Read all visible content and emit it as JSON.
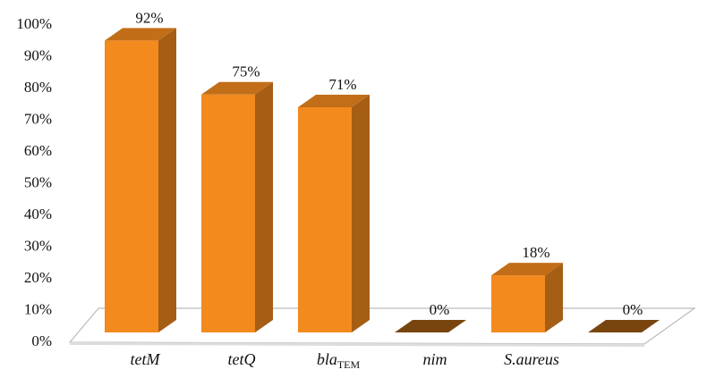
{
  "chart_data": {
    "type": "bar3d",
    "categories": [
      "tetM",
      "tetQ",
      "bla",
      "nim",
      "S.aureus",
      null
    ],
    "category_subscripts": [
      null,
      null,
      "TEM",
      null,
      null,
      null
    ],
    "values": [
      92,
      75,
      71,
      0,
      18,
      0
    ],
    "value_labels": [
      "92%",
      "75%",
      "71%",
      "0%",
      "18%",
      "0%"
    ],
    "color": "#f28a1e",
    "ylim": [
      0,
      100
    ],
    "yticks": [
      {
        "value": 0,
        "label": "0%"
      },
      {
        "value": 10,
        "label": "10%"
      },
      {
        "value": 20,
        "label": "20%"
      },
      {
        "value": 30,
        "label": "30%"
      },
      {
        "value": 40,
        "label": "40%"
      },
      {
        "value": 50,
        "label": "50%"
      },
      {
        "value": 60,
        "label": "60%"
      },
      {
        "value": 70,
        "label": "70%"
      },
      {
        "value": 80,
        "label": "80%"
      },
      {
        "value": 90,
        "label": "90%"
      },
      {
        "value": 100,
        "label": "100%"
      }
    ]
  }
}
